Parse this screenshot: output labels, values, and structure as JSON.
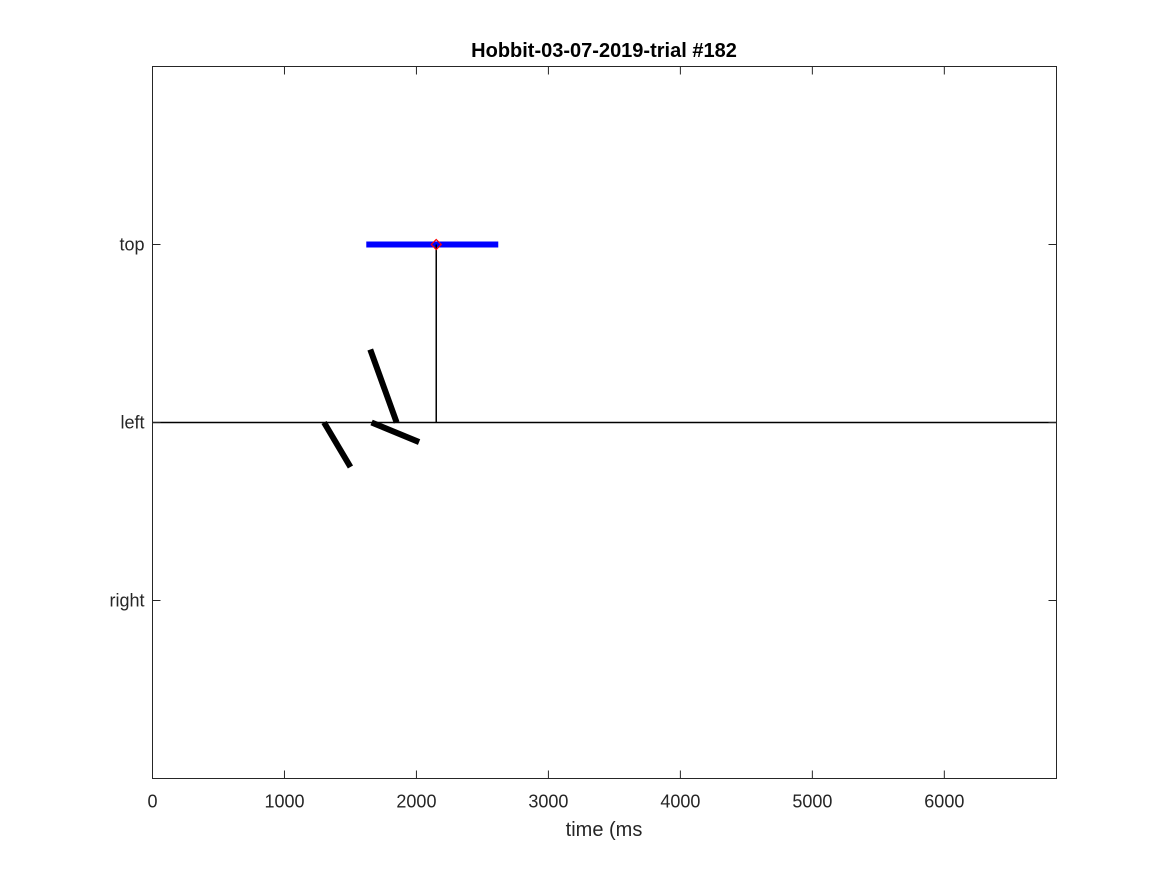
{
  "chart_data": {
    "type": "line",
    "title": "Hobbit-03-07-2019-trial #182",
    "xlabel": "time (ms",
    "ylabel": "",
    "xlim": [
      0,
      6850
    ],
    "ylim": [
      -4,
      4
    ],
    "x_ticks": [
      0,
      1000,
      2000,
      3000,
      4000,
      5000,
      6000
    ],
    "x_tick_labels": [
      "0",
      "1000",
      "2000",
      "3000",
      "4000",
      "5000",
      "6000"
    ],
    "y_ticks": [
      2,
      0,
      -2
    ],
    "y_tick_labels": [
      "top",
      "left",
      "right"
    ],
    "grid": false,
    "colors": {
      "axes": "#262626",
      "black_marks": "#000000",
      "blue_interval": "#0000ff",
      "red_marker": "#ff0000"
    },
    "series": [
      {
        "kind": "interval",
        "color": "#0000ff",
        "x": [
          1620,
          2620
        ],
        "y": [
          2,
          2
        ]
      },
      {
        "kind": "reference-line",
        "color": "#000000",
        "x": [
          0,
          6850
        ],
        "y": [
          0,
          0
        ]
      },
      {
        "kind": "reference-line",
        "color": "#000000",
        "x": [
          2150,
          2150
        ],
        "y": [
          0,
          2
        ]
      },
      {
        "kind": "segment",
        "color": "#000000",
        "x": [
          1300,
          1500
        ],
        "y": [
          0,
          -0.5
        ]
      },
      {
        "kind": "segment",
        "color": "#000000",
        "x": [
          1650,
          1850
        ],
        "y": [
          0.82,
          0
        ]
      },
      {
        "kind": "segment",
        "color": "#000000",
        "x": [
          1660,
          2020
        ],
        "y": [
          0,
          -0.22
        ]
      },
      {
        "kind": "marker",
        "color": "#ff0000",
        "x": [
          2150
        ],
        "y": [
          2
        ]
      }
    ]
  }
}
